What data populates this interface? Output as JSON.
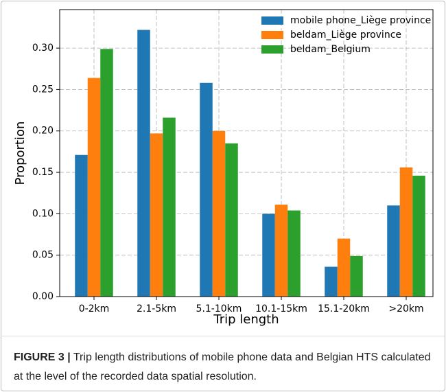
{
  "chart_data": {
    "type": "bar",
    "categories": [
      "0-2km",
      "2.1-5km",
      "5.1-10km",
      "10.1-15km",
      "15.1-20km",
      ">20km"
    ],
    "series": [
      {
        "name": "mobile phone_Liège province",
        "color": "#1f77b4",
        "values": [
          0.171,
          0.322,
          0.258,
          0.1,
          0.036,
          0.11
        ]
      },
      {
        "name": "beldam_Liège province",
        "color": "#ff7f0e",
        "values": [
          0.264,
          0.197,
          0.2,
          0.111,
          0.07,
          0.156
        ]
      },
      {
        "name": "beldam_Belgium",
        "color": "#2ca02c",
        "values": [
          0.299,
          0.216,
          0.185,
          0.104,
          0.049,
          0.146
        ]
      }
    ],
    "x_label": "Trip length",
    "y_label": "Proportion",
    "ylim": [
      0,
      0.3465
    ],
    "yticks": [
      {
        "value": 0,
        "label": "0.00"
      },
      0.05,
      {
        "value": 0.1,
        "label": "0.10"
      },
      0.15,
      {
        "value": 0.2,
        "label": "0.20"
      },
      0.25,
      {
        "value": 0.3,
        "label": "0.30"
      }
    ],
    "grid": true,
    "legend": "upper right"
  },
  "caption": {
    "label": "FIGURE 3 |",
    "text": "Trip length distributions of mobile phone data and Belgian HTS calculated at the level of the recorded data spatial resolution."
  }
}
